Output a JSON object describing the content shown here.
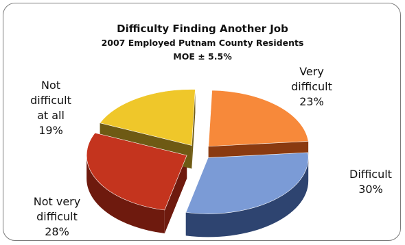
{
  "chart_data": {
    "type": "pie",
    "title": "Difficulty Finding Another Job",
    "subtitle": "2007 Employed Putnam County Residents",
    "note": "MOE ± 5.5%",
    "slices": [
      {
        "label": "Very difficult",
        "value": 23,
        "value_label": "23%",
        "color": "#f7893a",
        "side_color": "#8a3a10"
      },
      {
        "label": "Difficult",
        "value": 30,
        "value_label": "30%",
        "color": "#7b9bd6",
        "side_color": "#2e4470"
      },
      {
        "label": "Not very difficult",
        "value": 28,
        "value_label": "28%",
        "color": "#c4341e",
        "side_color": "#6e1a0e"
      },
      {
        "label": "Not difficult at all",
        "value": 19,
        "value_label": "19%",
        "color": "#efc72a",
        "side_color": "#6e5a14"
      }
    ],
    "label_lines": {
      "very_difficult": [
        "Very",
        "difficult",
        "23%"
      ],
      "difficult": [
        "Difficult",
        "30%"
      ],
      "not_very_difficult": [
        "Not very",
        "difficult",
        "28%"
      ],
      "not_difficult_at_all": [
        "Not",
        "difficult",
        "at all",
        "19%"
      ]
    }
  }
}
